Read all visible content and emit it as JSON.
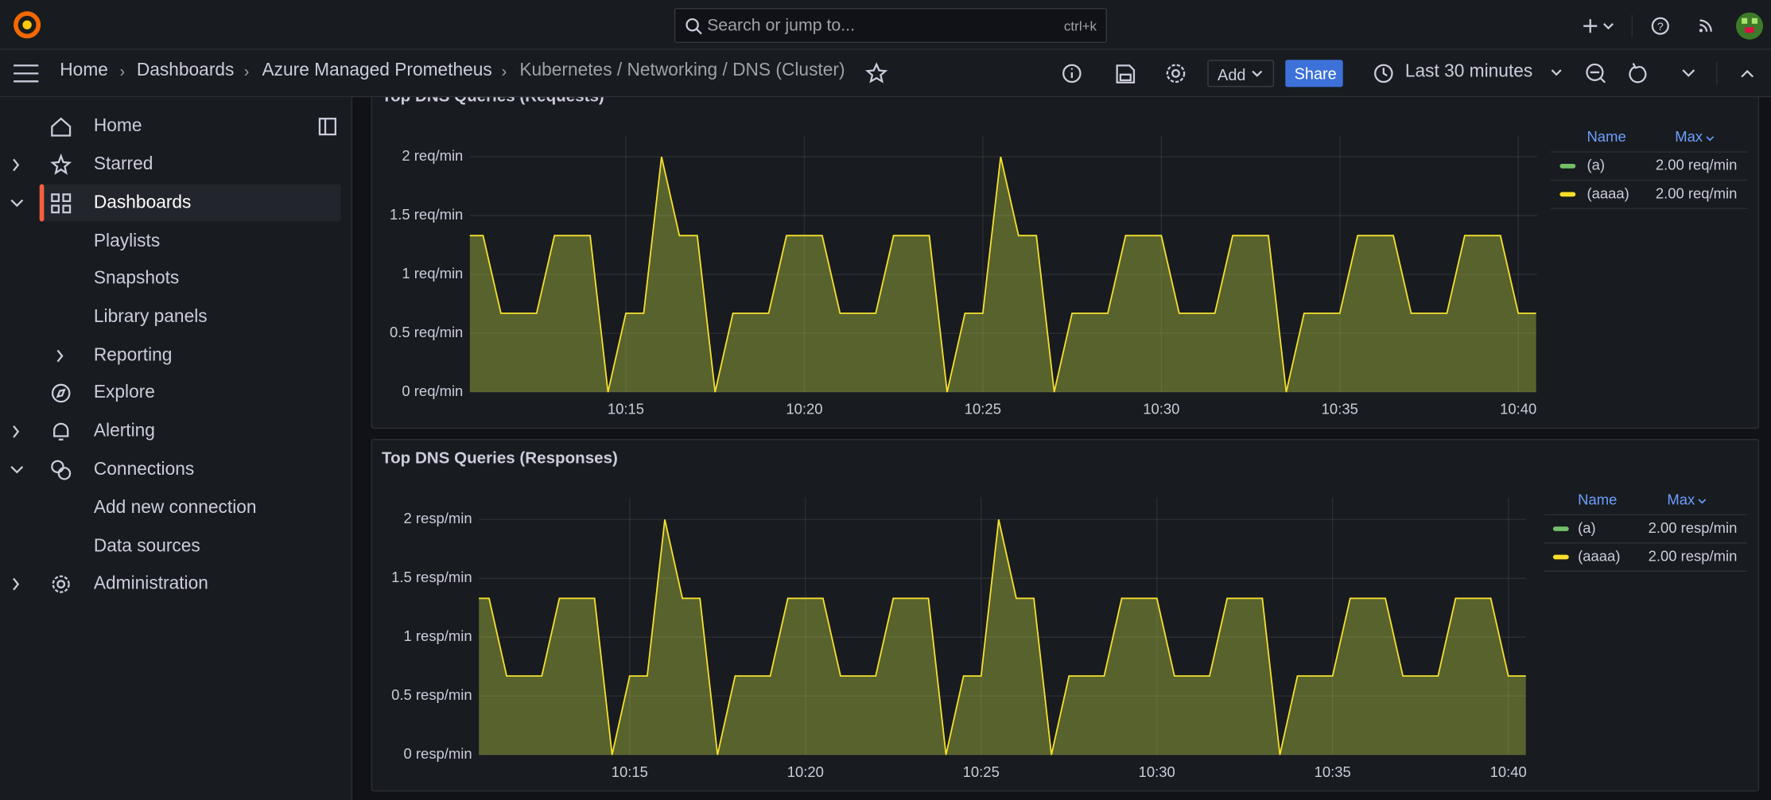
{
  "topbar": {
    "search_placeholder": "Search or jump to...",
    "search_shortcut": "ctrl+k"
  },
  "breadcrumbs": [
    "Home",
    "Dashboards",
    "Azure Managed Prometheus",
    "Kubernetes / Networking / DNS (Cluster)"
  ],
  "toolbar": {
    "add": "Add",
    "share": "Share",
    "time_range": "Last 30 minutes"
  },
  "sidebar": {
    "items": [
      "Home",
      "Starred",
      "Dashboards",
      "Playlists",
      "Snapshots",
      "Library panels",
      "Reporting",
      "Explore",
      "Alerting",
      "Connections",
      "Add new connection",
      "Data sources",
      "Administration"
    ]
  },
  "chart_data": [
    {
      "type": "area",
      "title": "Top DNS Queries (Requests)",
      "x": [
        10.5,
        11,
        11.5,
        12.5,
        13,
        14,
        14.5,
        15,
        15.5,
        16,
        16.5,
        17,
        17.5,
        18,
        19,
        19.5,
        20.5,
        21,
        22,
        22.5,
        23.5,
        24,
        24.5,
        25,
        25.5,
        26,
        26.5,
        27,
        27.5,
        28.5,
        29,
        30,
        30.5,
        31.5,
        32,
        33,
        33.5,
        34,
        35,
        35.5,
        36.5,
        37,
        38,
        38.5,
        39.5,
        40,
        40.5
      ],
      "xlim": [
        10.63,
        40.53
      ],
      "xticks": [
        {
          "value": 15,
          "label": "10:15"
        },
        {
          "value": 20,
          "label": "10:20"
        },
        {
          "value": 25,
          "label": "10:25"
        },
        {
          "value": 30,
          "label": "10:30"
        },
        {
          "value": 35,
          "label": "10:35"
        },
        {
          "value": 40,
          "label": "10:40"
        }
      ],
      "ylim": [
        0,
        2.18
      ],
      "yticks": [
        {
          "value": 0,
          "label": "0 req/min"
        },
        {
          "value": 0.5,
          "label": "0.5 req/min"
        },
        {
          "value": 1,
          "label": "1 req/min"
        },
        {
          "value": 1.5,
          "label": "1.5 req/min"
        },
        {
          "value": 2,
          "label": "2 req/min"
        }
      ],
      "grid": true,
      "legend_headers": [
        "Name",
        "Max"
      ],
      "series": [
        {
          "name": "(a)",
          "color": "#73bf69",
          "legend_max": "2.00 req/min",
          "values": [
            1.33,
            1.33,
            0.67,
            0.67,
            1.33,
            1.33,
            0,
            0.67,
            0.67,
            2,
            1.33,
            1.33,
            0,
            0.67,
            0.67,
            1.33,
            1.33,
            0.67,
            0.67,
            1.33,
            1.33,
            0,
            0.67,
            0.67,
            2,
            1.33,
            1.33,
            0,
            0.67,
            0.67,
            1.33,
            1.33,
            0.67,
            0.67,
            1.33,
            1.33,
            0,
            0.67,
            0.67,
            1.33,
            1.33,
            0.67,
            0.67,
            1.33,
            1.33,
            0.67,
            0.67
          ]
        },
        {
          "name": "(aaaa)",
          "color": "#fade2a",
          "legend_max": "2.00 req/min",
          "values": [
            1.33,
            1.33,
            0.67,
            0.67,
            1.33,
            1.33,
            0,
            0.67,
            0.67,
            2,
            1.33,
            1.33,
            0,
            0.67,
            0.67,
            1.33,
            1.33,
            0.67,
            0.67,
            1.33,
            1.33,
            0,
            0.67,
            0.67,
            2,
            1.33,
            1.33,
            0,
            0.67,
            0.67,
            1.33,
            1.33,
            0.67,
            0.67,
            1.33,
            1.33,
            0,
            0.67,
            0.67,
            1.33,
            1.33,
            0.67,
            0.67,
            1.33,
            1.33,
            0.67,
            0.67
          ]
        }
      ]
    },
    {
      "type": "area",
      "title": "Top DNS Queries (Responses)",
      "x": [
        10.5,
        11,
        11.5,
        12.5,
        13,
        14,
        14.5,
        15,
        15.5,
        16,
        16.5,
        17,
        17.5,
        18,
        19,
        19.5,
        20.5,
        21,
        22,
        22.5,
        23.5,
        24,
        24.5,
        25,
        25.5,
        26,
        26.5,
        27,
        27.5,
        28.5,
        29,
        30,
        30.5,
        31.5,
        32,
        33,
        33.5,
        34,
        35,
        35.5,
        36.5,
        37,
        38,
        38.5,
        39.5,
        40,
        40.5
      ],
      "xlim": [
        10.71,
        40.5
      ],
      "xticks": [
        {
          "value": 15,
          "label": "10:15"
        },
        {
          "value": 20,
          "label": "10:20"
        },
        {
          "value": 25,
          "label": "10:25"
        },
        {
          "value": 30,
          "label": "10:30"
        },
        {
          "value": 35,
          "label": "10:35"
        },
        {
          "value": 40,
          "label": "10:40"
        }
      ],
      "ylim": [
        0,
        2.19
      ],
      "yticks": [
        {
          "value": 0,
          "label": "0 resp/min"
        },
        {
          "value": 0.5,
          "label": "0.5 resp/min"
        },
        {
          "value": 1,
          "label": "1 resp/min"
        },
        {
          "value": 1.5,
          "label": "1.5 resp/min"
        },
        {
          "value": 2,
          "label": "2 resp/min"
        }
      ],
      "grid": true,
      "legend_headers": [
        "Name",
        "Max"
      ],
      "series": [
        {
          "name": "(a)",
          "color": "#73bf69",
          "legend_max": "2.00 resp/min",
          "values": [
            1.33,
            1.33,
            0.67,
            0.67,
            1.33,
            1.33,
            0,
            0.67,
            0.67,
            2,
            1.33,
            1.33,
            0,
            0.67,
            0.67,
            1.33,
            1.33,
            0.67,
            0.67,
            1.33,
            1.33,
            0,
            0.67,
            0.67,
            2,
            1.33,
            1.33,
            0,
            0.67,
            0.67,
            1.33,
            1.33,
            0.67,
            0.67,
            1.33,
            1.33,
            0,
            0.67,
            0.67,
            1.33,
            1.33,
            0.67,
            0.67,
            1.33,
            1.33,
            0.67,
            0.67
          ]
        },
        {
          "name": "(aaaa)",
          "color": "#fade2a",
          "legend_max": "2.00 resp/min",
          "values": [
            1.33,
            1.33,
            0.67,
            0.67,
            1.33,
            1.33,
            0,
            0.67,
            0.67,
            2,
            1.33,
            1.33,
            0,
            0.67,
            0.67,
            1.33,
            1.33,
            0.67,
            0.67,
            1.33,
            1.33,
            0,
            0.67,
            0.67,
            2,
            1.33,
            1.33,
            0,
            0.67,
            0.67,
            1.33,
            1.33,
            0.67,
            0.67,
            1.33,
            1.33,
            0,
            0.67,
            0.67,
            1.33,
            1.33,
            0.67,
            0.67,
            1.33,
            1.33,
            0.67,
            0.67
          ]
        }
      ]
    }
  ]
}
